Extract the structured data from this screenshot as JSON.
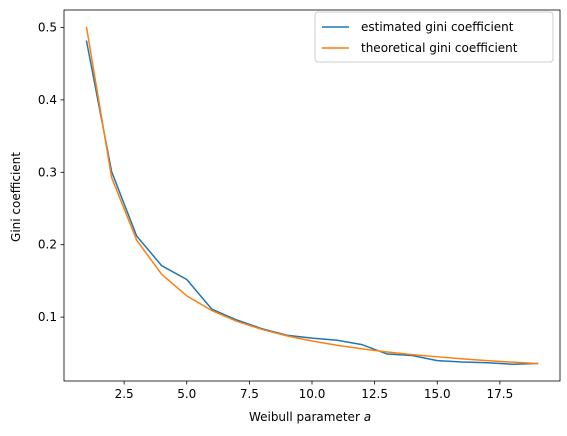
{
  "chart_data": {
    "type": "line",
    "title": "",
    "xlabel_text": "Weibull parameter ",
    "xlabel_var": "a",
    "ylabel": "Gini coefficient",
    "xlim": [
      0.1,
      19.9
    ],
    "ylim": [
      0.0118,
      0.5241
    ],
    "xticks": [
      2.5,
      5.0,
      7.5,
      10.0,
      12.5,
      15.0,
      17.5
    ],
    "xtick_labels": [
      "2.5",
      "5.0",
      "7.5",
      "10.0",
      "12.5",
      "15.0",
      "17.5"
    ],
    "yticks": [
      0.1,
      0.2,
      0.3,
      0.4,
      0.5
    ],
    "ytick_labels": [
      "0.1",
      "0.2",
      "0.3",
      "0.4",
      "0.5"
    ],
    "grid": false,
    "legend_position": "top-right",
    "x": [
      1,
      2,
      3,
      4,
      5,
      6,
      7,
      8,
      9,
      10,
      11,
      12,
      13,
      14,
      15,
      16,
      17,
      18,
      19
    ],
    "series": [
      {
        "name": "estimated gini coefficient",
        "color": "#1f77b4",
        "values": [
          0.481,
          0.301,
          0.212,
          0.171,
          0.152,
          0.111,
          0.096,
          0.084,
          0.075,
          0.071,
          0.068,
          0.062,
          0.049,
          0.047,
          0.04,
          0.038,
          0.037,
          0.035,
          0.036
        ]
      },
      {
        "name": "theoretical gini coefficient",
        "color": "#ff7f0e",
        "values": [
          0.5,
          0.2929,
          0.2063,
          0.1591,
          0.1294,
          0.1091,
          0.0942,
          0.083,
          0.0741,
          0.067,
          0.0611,
          0.0561,
          0.0519,
          0.0483,
          0.0452,
          0.0424,
          0.0399,
          0.0378,
          0.0358
        ]
      }
    ]
  }
}
